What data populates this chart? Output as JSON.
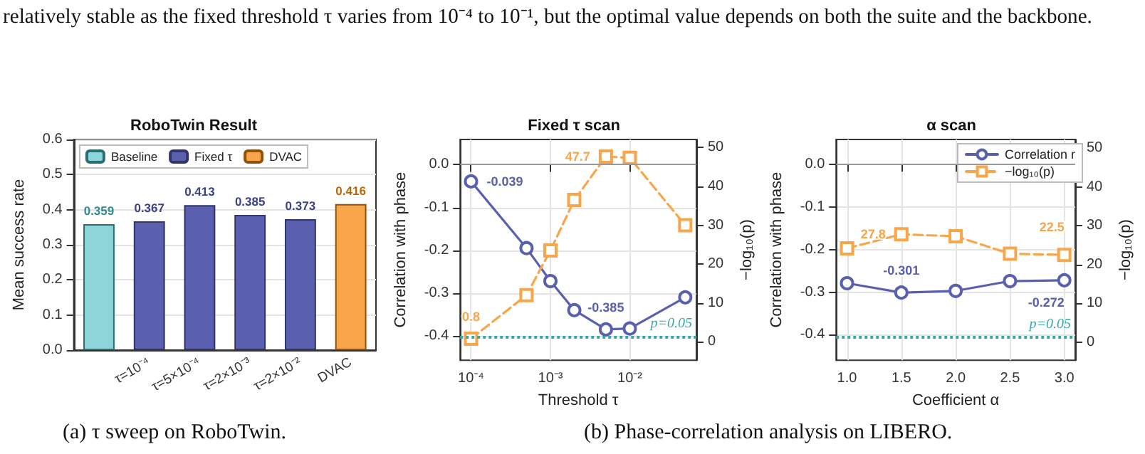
{
  "chart_data": [
    {
      "type": "bar",
      "title": "RoboTwin Result",
      "ylabel": "Mean success rate",
      "annotations": [
        "relatively stable as the fixed threshold τ varies from 10⁻⁴ to 10⁻¹, but the optimal value depends on both the suite and the backbone.",
        "(a) τ sweep on RoboTwin."
      ],
      "categories": [
        null,
        "τ=10⁻⁴",
        "τ=5×10⁻⁴",
        "τ=2×10⁻³",
        "τ=2×10⁻²",
        "DVAC"
      ],
      "stacked": true,
      "series": [
        {
          "name": "Baseline",
          "color": "#8dd5d8",
          "values": [
            0.359,
            null,
            null,
            null,
            null,
            null
          ]
        },
        {
          "name": "Fixed τ",
          "color": "#5a5fb0",
          "values": [
            null,
            0.367,
            0.413,
            0.385,
            0.373,
            null
          ]
        },
        {
          "name": "DVAC",
          "color": "#f9a64a",
          "values": [
            null,
            null,
            null,
            null,
            null,
            0.416
          ]
        }
      ],
      "ylim": [
        0,
        0.6
      ],
      "yticks": [
        {
          "value": 0,
          "label": "0.0"
        },
        {
          "value": 0.1,
          "label": "0.1"
        },
        {
          "value": 0.2,
          "label": "0.2"
        },
        {
          "value": 0.3,
          "label": "0.3"
        },
        {
          "value": 0.4,
          "label": "0.4"
        },
        {
          "value": 0.5,
          "label": "0.5"
        },
        {
          "value": 0.6,
          "label": "0.6"
        }
      ],
      "grid": "y",
      "legend": "top",
      "data_labels": true
    },
    {
      "type": "line",
      "title": "Fixed τ scan",
      "xlabel": "Threshold τ",
      "ylabel": "Correlation with phase",
      "y2label": "−log₁₀(p)",
      "annotations": [
        "(b) Phase-correlation analysis on LIBERO.",
        "p=0.05"
      ],
      "log": "x",
      "x": [
        0.0001,
        0.0005,
        0.001,
        0.002,
        0.005,
        0.01,
        0.05
      ],
      "series": [
        {
          "color": "#5a5fb0",
          "marker": "circle",
          "line_style": "solid",
          "values": [
            -0.039,
            -0.195,
            -0.272,
            -0.34,
            -0.385,
            -0.383,
            -0.31
          ],
          "value_labels": [
            "-0.039",
            null,
            null,
            null,
            "-0.385",
            null,
            null
          ]
        },
        {
          "color": "#f9a64a",
          "marker": "square",
          "line_style": "dashed",
          "axis": "y2",
          "values": [
            0.8,
            12,
            23.5,
            36.5,
            47.7,
            47.4,
            30
          ],
          "value_labels": [
            "0.8",
            null,
            null,
            null,
            "47.7",
            null,
            null
          ]
        }
      ],
      "xlim": [
        7.3e-05,
        0.069
      ],
      "xticks": [
        {
          "value": 0.0001,
          "label": "10⁻⁴"
        },
        {
          "value": 0.001,
          "label": "10⁻³"
        },
        {
          "value": 0.01,
          "label": "10⁻²"
        }
      ],
      "ylim": [
        -0.457,
        0.059
      ],
      "yticks": [
        {
          "value": -0.4,
          "label": "-0.4"
        },
        {
          "value": -0.3,
          "label": "-0.3"
        },
        {
          "value": -0.2,
          "label": "-0.2"
        },
        {
          "value": -0.1,
          "label": "-0.1"
        },
        {
          "value": 0,
          "label": "0.0"
        }
      ],
      "y2lim": [
        -4.75,
        52.1
      ],
      "y2ticks": [
        0,
        10,
        20,
        30,
        40,
        50
      ],
      "ref_lines": [
        {
          "axis": "y",
          "value": 0,
          "color": "#999999",
          "line_style": "solid"
        },
        {
          "axis": "y2",
          "value": 1.3,
          "color": "#3aa8a8",
          "line_style": "dotted"
        }
      ],
      "grid": true
    },
    {
      "type": "line",
      "title": "α scan",
      "xlabel": "Coefficient α",
      "ylabel": "Correlation with phase",
      "y2label": "−log₁₀(p)",
      "annotations": [
        "p=0.05"
      ],
      "x": [
        1,
        1.5,
        2,
        2.5,
        3
      ],
      "series": [
        {
          "name": "Correlation r",
          "color": "#5a5fb0",
          "marker": "circle",
          "line_style": "solid",
          "values": [
            -0.279,
            -0.301,
            -0.297,
            -0.274,
            -0.272
          ],
          "value_labels": [
            null,
            "-0.301",
            null,
            null,
            "-0.272"
          ]
        },
        {
          "name": "−log₁₀(p)",
          "color": "#f9a64a",
          "marker": "square",
          "line_style": "dashed",
          "axis": "y2",
          "values": [
            24.2,
            27.8,
            27.3,
            22.8,
            22.5
          ],
          "value_labels": [
            null,
            "27.8",
            null,
            null,
            "22.5"
          ]
        }
      ],
      "xlim": [
        0.9,
        3.1
      ],
      "xticks": [
        {
          "value": 1,
          "label": "1.0"
        },
        {
          "value": 1.5,
          "label": "1.5"
        },
        {
          "value": 2,
          "label": "2.0"
        },
        {
          "value": 2.5,
          "label": "2.5"
        },
        {
          "value": 3,
          "label": "3.0"
        }
      ],
      "ylim": [
        -0.46,
        0.059
      ],
      "yticks": [
        {
          "value": -0.4,
          "label": "-0.4"
        },
        {
          "value": -0.3,
          "label": "-0.3"
        },
        {
          "value": -0.2,
          "label": "-0.2"
        },
        {
          "value": -0.1,
          "label": "-0.1"
        },
        {
          "value": 0,
          "label": "0.0"
        }
      ],
      "y2lim": [
        -4.6,
        52.2
      ],
      "y2ticks": [
        0,
        10,
        20,
        30,
        40,
        50
      ],
      "ref_lines": [
        {
          "axis": "y",
          "value": 0,
          "color": "#999999",
          "line_style": "solid"
        },
        {
          "axis": "y2",
          "value": 1.3,
          "color": "#3aa8a8",
          "line_style": "dotted"
        }
      ],
      "grid": true,
      "legend": "top right"
    }
  ]
}
